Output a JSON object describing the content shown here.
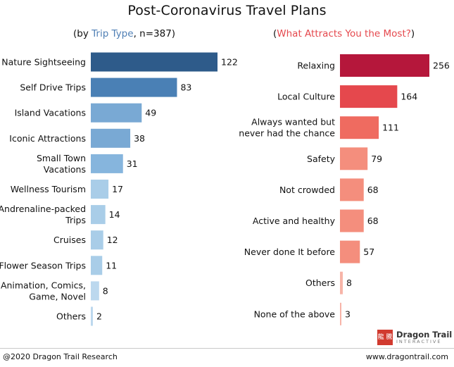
{
  "title": "Post-Coronavirus Travel Plans",
  "left_subtitle": {
    "pre": "(by ",
    "highlight": "Trip Type",
    "post": ", n=387)"
  },
  "right_subtitle": {
    "pre": "(",
    "highlight": "What Attracts You the Most?",
    "post": ")"
  },
  "footer": {
    "left": "@2020 Dragon Trail Research",
    "right": "www.dragontrail.com"
  },
  "logo": {
    "mark": "龍 騰",
    "name": "Dragon Trail",
    "sub": "INTERACTIVE"
  },
  "chart_data": [
    {
      "type": "bar",
      "orientation": "horizontal",
      "title": "by Trip Type, n=387",
      "categories": [
        [
          "Nature Sightseeing"
        ],
        [
          "Self Drive Trips"
        ],
        [
          "Island Vacations"
        ],
        [
          "Iconic Attractions"
        ],
        [
          "Small Town",
          "Vacations"
        ],
        [
          "Wellness Tourism"
        ],
        [
          "Andrenaline-packed",
          "Trips"
        ],
        [
          "Cruises"
        ],
        [
          "Flower Season Trips"
        ],
        [
          "Animation, Comics,",
          "Game, Novel"
        ],
        [
          "Others"
        ]
      ],
      "values": [
        122,
        83,
        49,
        38,
        31,
        17,
        14,
        12,
        11,
        8,
        2
      ],
      "colors": [
        "#2e5b8a",
        "#4a80b5",
        "#79a9d4",
        "#79a9d4",
        "#86b5dd",
        "#a9cde8",
        "#a9cde8",
        "#a9cde8",
        "#a9cde8",
        "#bcd8ee",
        "#bcd8ee"
      ],
      "xlim": [
        0,
        122
      ]
    },
    {
      "type": "bar",
      "orientation": "horizontal",
      "title": "What Attracts You the Most?",
      "categories": [
        [
          "Relaxing"
        ],
        [
          "Local Culture"
        ],
        [
          "Always wanted but",
          "never had the chance"
        ],
        [
          "Safety"
        ],
        [
          "Not crowded"
        ],
        [
          "Active and healthy"
        ],
        [
          "Never done It before"
        ],
        [
          "Others"
        ],
        [
          "None of the above"
        ]
      ],
      "values": [
        256,
        164,
        111,
        79,
        68,
        68,
        57,
        8,
        3
      ],
      "colors": [
        "#b5173b",
        "#e5484d",
        "#ef6b60",
        "#f48e7d",
        "#f48e7d",
        "#f48e7d",
        "#f48e7d",
        "#f7b4a8",
        "#f7b4a8"
      ],
      "xlim": [
        0,
        256
      ]
    }
  ]
}
